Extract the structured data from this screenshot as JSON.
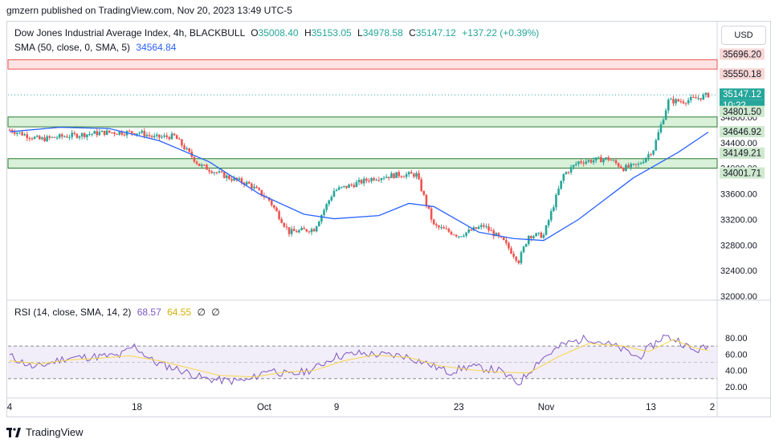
{
  "attribution": "gmzern published on TradingView.com, Nov 20, 2023 13:49 UTC-5",
  "legend": {
    "symbol": "Dow Jones Industrial Average Index, 4h, BLACKBULL",
    "o_label": "O",
    "o_value": "35008.40",
    "h_label": "H",
    "h_value": "35153.05",
    "l_label": "L",
    "l_value": "34978.58",
    "c_label": "C",
    "c_value": "35147.12",
    "change": "+137.22 (+0.39%)",
    "sma_label": "SMA (50, close, 0, SMA, 5)",
    "sma_value": "34564.84",
    "rsi_label": "RSI (14, close, SMA, 14, 2)",
    "rsi_value": "68.57",
    "rsi_ma_value": "64.55",
    "rsi_extra1": "∅",
    "rsi_extra2": "∅"
  },
  "currency_button": "USD",
  "footer": "TradingView",
  "colors": {
    "up": "#26a69a",
    "down": "#ef5350",
    "sma": "#2962ff",
    "rsi": "#7e57c2",
    "rsi_ma": "#f7d54a",
    "zone_green": "#c8e6c9",
    "zone_red": "#ffcdd2"
  },
  "chart_data": [
    {
      "type": "candlestick",
      "title": "Dow Jones Industrial Average Index, 4h, BLACKBULL",
      "ylim": [
        32000,
        36000
      ],
      "yticks": [
        "32000.00",
        "32400.00",
        "32800.00",
        "33200.00",
        "33600.00",
        "34000.00",
        "34400.00",
        "34800.00",
        "35200.00"
      ],
      "x_ticks": [
        {
          "label": "4",
          "idx": 0
        },
        {
          "label": "18",
          "idx": 51
        },
        {
          "label": "Oct",
          "idx": 102
        },
        {
          "label": "9",
          "idx": 131
        },
        {
          "label": "23",
          "idx": 180
        },
        {
          "label": "Nov",
          "idx": 215
        },
        {
          "label": "13",
          "idx": 257
        },
        {
          "label": "2",
          "idx": 287
        }
      ],
      "close_path": [
        [
          0,
          34600
        ],
        [
          12,
          34450
        ],
        [
          22,
          34500
        ],
        [
          38,
          34560
        ],
        [
          52,
          34560
        ],
        [
          58,
          34480
        ],
        [
          66,
          34500
        ],
        [
          76,
          34050
        ],
        [
          88,
          33850
        ],
        [
          96,
          33750
        ],
        [
          104,
          33500
        ],
        [
          112,
          33000
        ],
        [
          122,
          33050
        ],
        [
          130,
          33650
        ],
        [
          138,
          33750
        ],
        [
          146,
          33850
        ],
        [
          156,
          33900
        ],
        [
          163,
          33900
        ],
        [
          170,
          33100
        ],
        [
          180,
          32950
        ],
        [
          190,
          33100
        ],
        [
          198,
          32850
        ],
        [
          204,
          32550
        ],
        [
          208,
          32950
        ],
        [
          214,
          32950
        ],
        [
          222,
          33900
        ],
        [
          228,
          34100
        ],
        [
          240,
          34150
        ],
        [
          246,
          34000
        ],
        [
          252,
          34050
        ],
        [
          258,
          34300
        ],
        [
          264,
          35050
        ],
        [
          270,
          35050
        ],
        [
          276,
          35100
        ],
        [
          280,
          35147.12
        ]
      ],
      "sma": [
        [
          0,
          34570
        ],
        [
          20,
          34640
        ],
        [
          40,
          34620
        ],
        [
          60,
          34430
        ],
        [
          80,
          34100
        ],
        [
          100,
          33600
        ],
        [
          118,
          33280
        ],
        [
          130,
          33210
        ],
        [
          148,
          33260
        ],
        [
          160,
          33450
        ],
        [
          170,
          33400
        ],
        [
          188,
          33000
        ],
        [
          202,
          32900
        ],
        [
          214,
          32870
        ],
        [
          228,
          33200
        ],
        [
          250,
          33850
        ],
        [
          268,
          34250
        ],
        [
          280,
          34564.84
        ]
      ],
      "zones": [
        {
          "top": 35696.2,
          "bottom": 35550.18,
          "type": "resistance"
        },
        {
          "top": 34801.5,
          "bottom": 34646.92,
          "type": "support"
        },
        {
          "top": 34149.21,
          "bottom": 34001.71,
          "type": "support"
        }
      ],
      "price_labels": [
        {
          "text": "35696.20",
          "value": 35696.2,
          "kind": "red"
        },
        {
          "text": "35550.18",
          "value": 35550.18,
          "kind": "red"
        },
        {
          "text": "35147.12",
          "value": 35147.12,
          "kind": "last"
        },
        {
          "text": "10:22",
          "value": 35147.12,
          "kind": "timer"
        },
        {
          "text": "34801.50",
          "value": 34801.5,
          "kind": "green"
        },
        {
          "text": "34646.92",
          "value": 34646.92,
          "kind": "green"
        },
        {
          "text": "34149.21",
          "value": 34149.21,
          "kind": "green"
        },
        {
          "text": "34001.71",
          "value": 34001.71,
          "kind": "green"
        }
      ]
    },
    {
      "type": "line",
      "title": "RSI (14, close, SMA, 14, 2)",
      "ylim": [
        15,
        90
      ],
      "yticks": [
        "20.00",
        "40.00",
        "60.00",
        "80.00"
      ],
      "bands": [
        30,
        50,
        70
      ],
      "rsi": [
        [
          0,
          58
        ],
        [
          10,
          43
        ],
        [
          22,
          55
        ],
        [
          34,
          57
        ],
        [
          44,
          58
        ],
        [
          50,
          70
        ],
        [
          58,
          50
        ],
        [
          68,
          41
        ],
        [
          78,
          30
        ],
        [
          88,
          27
        ],
        [
          96,
          28
        ],
        [
          104,
          42
        ],
        [
          112,
          34
        ],
        [
          122,
          42
        ],
        [
          130,
          57
        ],
        [
          140,
          61
        ],
        [
          150,
          59
        ],
        [
          158,
          58
        ],
        [
          166,
          50
        ],
        [
          176,
          38
        ],
        [
          184,
          45
        ],
        [
          196,
          40
        ],
        [
          204,
          24
        ],
        [
          212,
          52
        ],
        [
          222,
          72
        ],
        [
          232,
          80
        ],
        [
          244,
          68
        ],
        [
          252,
          56
        ],
        [
          262,
          82
        ],
        [
          268,
          77
        ],
        [
          274,
          64
        ],
        [
          280,
          68.57
        ]
      ],
      "rsi_ma": [
        [
          0,
          52
        ],
        [
          12,
          48
        ],
        [
          24,
          53
        ],
        [
          36,
          55
        ],
        [
          48,
          58
        ],
        [
          60,
          52
        ],
        [
          72,
          43
        ],
        [
          84,
          34
        ],
        [
          98,
          32
        ],
        [
          110,
          38
        ],
        [
          122,
          40
        ],
        [
          134,
          52
        ],
        [
          146,
          59
        ],
        [
          160,
          56
        ],
        [
          172,
          46
        ],
        [
          184,
          41
        ],
        [
          196,
          38
        ],
        [
          208,
          37
        ],
        [
          220,
          57
        ],
        [
          232,
          73
        ],
        [
          246,
          70
        ],
        [
          256,
          63
        ],
        [
          266,
          78
        ],
        [
          274,
          68
        ],
        [
          280,
          64.55
        ]
      ]
    }
  ]
}
